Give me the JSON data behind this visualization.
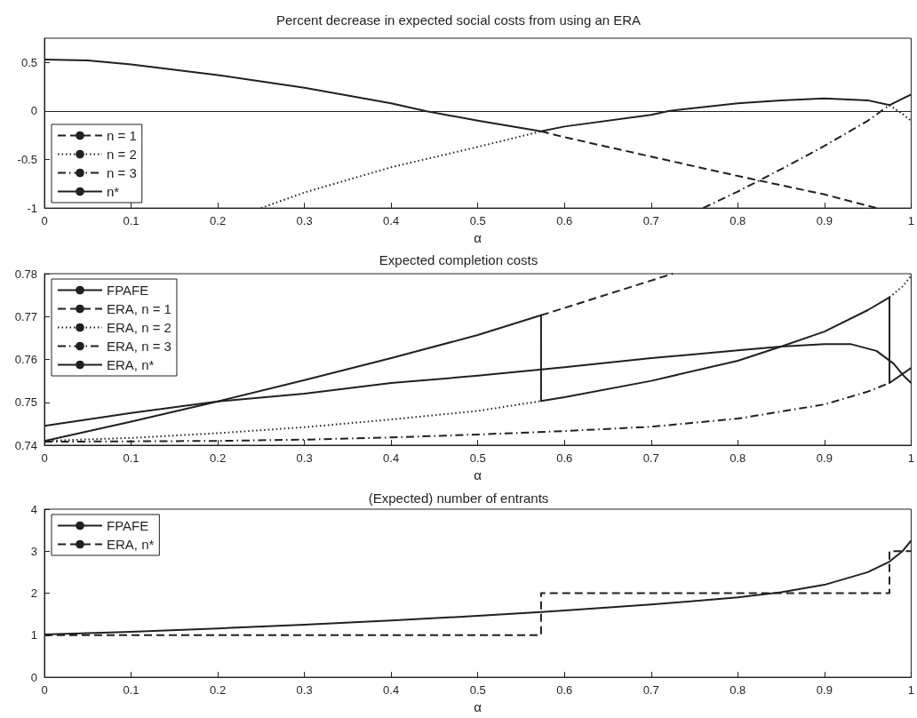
{
  "chart_data": [
    {
      "type": "line",
      "title": "Percent decrease in expected social costs from using an ERA",
      "xlabel": "α",
      "xlim": [
        0,
        1
      ],
      "xticks": [
        0,
        0.1,
        0.2,
        0.3,
        0.4,
        0.5,
        0.6,
        0.7,
        0.8,
        0.9,
        1
      ],
      "ylim": [
        -1,
        0.75
      ],
      "yticks": [
        -1,
        -0.5,
        0,
        0.5
      ],
      "legend": "bottom left",
      "ref_lines": [
        {
          "axis": "y",
          "value": 0,
          "color": "#231f20"
        }
      ],
      "series": [
        {
          "name": "n = 1",
          "color": "#231f20",
          "line_style": "dashed",
          "x": [
            0.573,
            0.6,
            0.7,
            0.8,
            0.9,
            0.96
          ],
          "values": [
            -0.21,
            -0.27,
            -0.47,
            -0.67,
            -0.86,
            -1
          ]
        },
        {
          "name": "n = 2",
          "color": "#231f20",
          "line_style": "dotted",
          "x": [
            0.25,
            0.3,
            0.4,
            0.5,
            0.573,
            0.8,
            0.975,
            0.99,
            1
          ],
          "values": [
            -1,
            -0.84,
            -0.58,
            -0.37,
            -0.21,
            null,
            0.06,
            -0.03,
            -0.1
          ]
        },
        {
          "name": "n = 3",
          "color": "#231f20",
          "line_style": "dashdot",
          "x": [
            0.76,
            0.8,
            0.85,
            0.9,
            0.95,
            0.975
          ],
          "values": [
            -1,
            -0.83,
            -0.6,
            -0.36,
            -0.1,
            0.06
          ]
        },
        {
          "name": "n*",
          "color": "#231f20",
          "line_style": "solid",
          "x": [
            0,
            0.05,
            0.1,
            0.2,
            0.3,
            0.4,
            0.44,
            0.5,
            0.573,
            0.6,
            0.7,
            0.72,
            0.8,
            0.85,
            0.9,
            0.95,
            0.975,
            1
          ],
          "values": [
            0.53,
            0.52,
            0.48,
            0.37,
            0.24,
            0.08,
            0,
            -0.1,
            -0.21,
            -0.16,
            -0.04,
            0,
            0.08,
            0.11,
            0.13,
            0.11,
            0.06,
            0.17
          ]
        }
      ]
    },
    {
      "type": "line",
      "title": "Expected completion costs",
      "xlabel": "α",
      "xlim": [
        0,
        1
      ],
      "xticks": [
        0,
        0.1,
        0.2,
        0.3,
        0.4,
        0.5,
        0.6,
        0.7,
        0.8,
        0.9,
        1
      ],
      "ylim": [
        0.74,
        0.78
      ],
      "yticks": [
        0.74,
        0.75,
        0.76,
        0.77,
        0.78
      ],
      "legend": "top left",
      "series": [
        {
          "name": "FPAFE",
          "color": "#231f20",
          "line_style": "solid",
          "x": [
            0,
            0.1,
            0.2,
            0.3,
            0.4,
            0.5,
            0.6,
            0.7,
            0.8,
            0.85,
            0.9,
            0.93,
            0.96,
            0.98,
            0.99,
            1
          ],
          "values": [
            0.7445,
            0.7475,
            0.7502,
            0.752,
            0.7545,
            0.7562,
            0.7582,
            0.7603,
            0.7621,
            0.763,
            0.7636,
            0.7636,
            0.762,
            0.759,
            0.7565,
            0.7545
          ]
        },
        {
          "name": "ERA, n = 1",
          "color": "#231f20",
          "line_style": "dashed",
          "x": [
            0.573,
            0.65,
            0.725
          ],
          "values": [
            0.7703,
            0.7752,
            0.78
          ]
        },
        {
          "name": "ERA, n = 2",
          "color": "#231f20",
          "line_style": "dotted",
          "x": [
            0,
            0.1,
            0.2,
            0.3,
            0.4,
            0.5,
            0.573,
            0.8,
            0.975,
            0.99,
            1
          ],
          "values": [
            0.741,
            0.7417,
            0.7428,
            0.7442,
            0.746,
            0.748,
            0.7503,
            null,
            0.7745,
            0.777,
            0.7795
          ]
        },
        {
          "name": "ERA, n = 3",
          "color": "#231f20",
          "line_style": "dashdot",
          "x": [
            0,
            0.2,
            0.3,
            0.4,
            0.5,
            0.6,
            0.7,
            0.8,
            0.9,
            0.95,
            0.975
          ],
          "values": [
            0.7408,
            0.741,
            0.7413,
            0.7418,
            0.7425,
            0.7433,
            0.7443,
            0.7462,
            0.7495,
            0.7525,
            0.7545
          ]
        },
        {
          "name": "ERA, n*",
          "color": "#231f20",
          "line_style": "solid",
          "x": [
            0,
            0.1,
            0.2,
            0.3,
            0.4,
            0.5,
            0.573,
            0.573,
            0.6,
            0.7,
            0.8,
            0.85,
            0.9,
            0.95,
            0.975,
            0.975,
            1
          ],
          "values": [
            0.741,
            0.7455,
            0.7502,
            0.7552,
            0.7603,
            0.7657,
            0.7703,
            0.7503,
            0.7512,
            0.755,
            0.7597,
            0.763,
            0.7665,
            0.7715,
            0.7745,
            0.7545,
            0.758
          ]
        }
      ]
    },
    {
      "type": "line",
      "title": "(Expected) number of entrants",
      "xlabel": "α",
      "xlim": [
        0,
        1
      ],
      "xticks": [
        0,
        0.1,
        0.2,
        0.3,
        0.4,
        0.5,
        0.6,
        0.7,
        0.8,
        0.9,
        1
      ],
      "ylim": [
        0,
        4
      ],
      "yticks": [
        0,
        1,
        2,
        3,
        4
      ],
      "legend": "top left",
      "series": [
        {
          "name": "FPAFE",
          "color": "#231f20",
          "line_style": "solid",
          "x": [
            0,
            0.1,
            0.2,
            0.3,
            0.4,
            0.5,
            0.573,
            0.6,
            0.7,
            0.8,
            0.85,
            0.9,
            0.95,
            0.975,
            0.99,
            1
          ],
          "values": [
            1.02,
            1.08,
            1.16,
            1.25,
            1.35,
            1.46,
            1.55,
            1.59,
            1.73,
            1.9,
            2.02,
            2.2,
            2.5,
            2.75,
            3.0,
            3.25
          ]
        },
        {
          "name": "ERA, n*",
          "type": "step",
          "color": "#231f20",
          "line_style": "dashed",
          "x": [
            0,
            0.573,
            0.975,
            1
          ],
          "values": [
            1,
            2,
            3,
            3
          ]
        }
      ]
    }
  ]
}
